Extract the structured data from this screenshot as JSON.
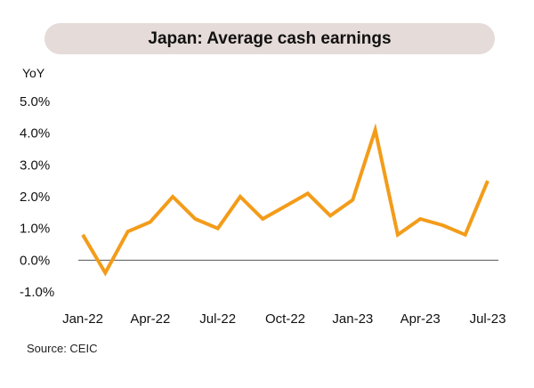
{
  "chart_data": {
    "type": "line",
    "title": "Japan: Average cash earnings",
    "ylabel": "YoY",
    "xlabel": "",
    "source": "Source: CEIC",
    "ylim": [
      -1.0,
      5.0
    ],
    "yticks": [
      5.0,
      4.0,
      3.0,
      2.0,
      1.0,
      0.0,
      -1.0
    ],
    "ytick_labels": [
      "5.0%",
      "4.0%",
      "3.0%",
      "2.0%",
      "1.0%",
      "0.0%",
      "-1.0%"
    ],
    "x": [
      "Jan-22",
      "Feb-22",
      "Mar-22",
      "Apr-22",
      "May-22",
      "Jun-22",
      "Jul-22",
      "Aug-22",
      "Sep-22",
      "Oct-22",
      "Nov-22",
      "Dec-22",
      "Jan-23",
      "Feb-23",
      "Mar-23",
      "Apr-23",
      "May-23",
      "Jun-23",
      "Jul-23"
    ],
    "xtick_labels": [
      "Jan-22",
      "Apr-22",
      "Jul-22",
      "Oct-22",
      "Jan-23",
      "Apr-23",
      "Jul-23"
    ],
    "series": [
      {
        "values": [
          0.8,
          -0.4,
          0.9,
          1.2,
          2.0,
          1.3,
          1.0,
          2.0,
          1.3,
          1.7,
          2.1,
          1.4,
          1.9,
          4.1,
          0.8,
          1.3,
          1.1,
          0.8,
          2.5
        ],
        "color": "#f39c1a"
      }
    ],
    "grid": false,
    "zero_line": true,
    "zero_line_color": "#555555"
  }
}
